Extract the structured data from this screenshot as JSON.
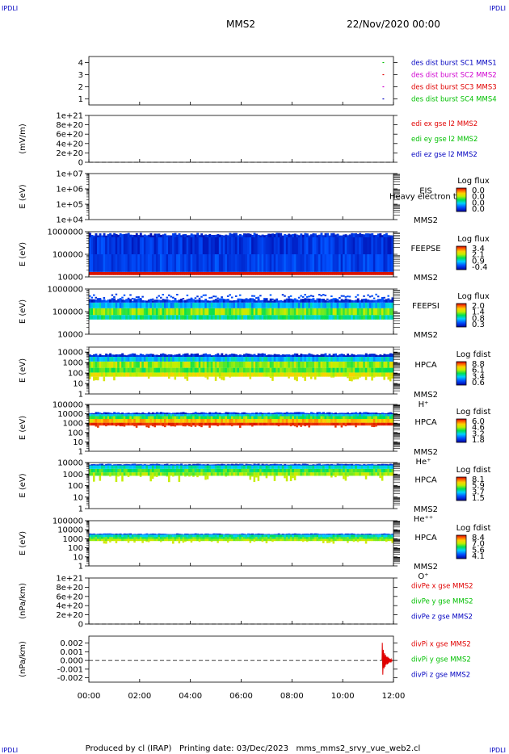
{
  "corners": {
    "top_left": "IPDLI",
    "top_right": "IPDLI",
    "bottom_left": "IPDLI",
    "bottom_right": "IPDLI"
  },
  "header": {
    "spacecraft": "MMS2",
    "date": "22/Nov/2020 00:00"
  },
  "footer": {
    "text": "Produced by cl (IRAP)   Printing date: 03/Dec/2023   mms_mms2_srvy_vue_web2.cl"
  },
  "colors": {
    "red": "#e00000",
    "magenta": "#d000d0",
    "green": "#00c000",
    "blue": "#0000c0",
    "black": "#000000"
  },
  "chart_data": {
    "type": "multi-panel stack plot",
    "x_ticks": [
      "00:00",
      "02:00",
      "04:00",
      "06:00",
      "08:00",
      "10:00",
      "12:00"
    ],
    "xlim_hours": [
      0,
      12
    ],
    "panels": [
      {
        "id": "burst",
        "type": "timeline",
        "ylabel": "",
        "ylim": [
          0.5,
          4.5
        ],
        "y_ticks": [
          "4",
          "3",
          "2",
          "1"
        ],
        "legend": [
          "des dist burst SC1 MMS1",
          "des dist burst SC2 MMS2",
          "des dist burst SC3 MMS3",
          "des dist burst SC4 MMS4"
        ],
        "legend_colors": [
          "#0000c0",
          "#d000d0",
          "#e00000",
          "#00c000"
        ],
        "marks": [
          {
            "t": 11.6,
            "level": 4,
            "color": "#00c000"
          },
          {
            "t": 11.6,
            "level": 3,
            "color": "#e00000"
          },
          {
            "t": 11.6,
            "level": 2,
            "color": "#d000d0"
          },
          {
            "t": 11.6,
            "level": 1,
            "color": "#0000c0"
          }
        ]
      },
      {
        "id": "edi",
        "type": "line",
        "ylabel": "(mV/m)",
        "ylim": [
          0,
          1e+21
        ],
        "y_ticks": [
          "1e+21",
          "8e+20",
          "6e+20",
          "4e+20",
          "2e+20",
          "0"
        ],
        "legend": [
          "edi ex gse l2 MMS2",
          "edi ey gse l2 MMS2",
          "edi ez gse l2 MMS2"
        ],
        "legend_colors": [
          "#e00000",
          "#00c000",
          "#0000c0"
        ],
        "zero_line": true
      },
      {
        "id": "eis",
        "type": "heatmap",
        "ylabel": "E (eV)",
        "scale": "log",
        "ylim": [
          10000.0,
          10000000.0
        ],
        "y_ticks": [
          "1e+07",
          "1e+06",
          "1e+05",
          "1e+04"
        ],
        "labels": [
          "EIS",
          "MMS2"
        ],
        "overlay_text": "Heavy electron to",
        "colorbar": {
          "title": "Log flux",
          "ticks": [
            "0.0",
            "0.0",
            "0.0",
            "0.0"
          ]
        }
      },
      {
        "id": "feepse",
        "type": "heatmap",
        "ylabel": "E (eV)",
        "scale": "log",
        "ylim": [
          10000.0,
          1000000.0
        ],
        "y_ticks": [
          "1000000",
          "100000",
          "10000"
        ],
        "labels": [
          "FEEPSE",
          "MMS2"
        ],
        "colorbar": {
          "title": "Log flux",
          "ticks": [
            "3.4",
            "2.1",
            "0.9",
            "-0.4"
          ]
        }
      },
      {
        "id": "feepsi",
        "type": "heatmap",
        "ylabel": "E (eV)",
        "scale": "log",
        "ylim": [
          10000.0,
          1000000.0
        ],
        "y_ticks": [
          "1000000",
          "100000",
          "10000"
        ],
        "labels": [
          "FEEPSI",
          "MMS2"
        ],
        "colorbar": {
          "title": "Log flux",
          "ticks": [
            "2.0",
            "1.4",
            "0.8",
            "0.3"
          ]
        }
      },
      {
        "id": "hpca_h",
        "type": "heatmap",
        "ylabel": "E (eV)",
        "scale": "log",
        "ylim": [
          1,
          30000.0
        ],
        "y_ticks": [
          "10000",
          "1000",
          "100",
          "10",
          "1"
        ],
        "labels": [
          "HPCA",
          "MMS2",
          "H⁺"
        ],
        "colorbar": {
          "title": "Log fdist",
          "ticks": [
            "8.8",
            "6.1",
            "3.4",
            "0.6"
          ]
        }
      },
      {
        "id": "hpca_he",
        "type": "heatmap",
        "ylabel": "E (eV)",
        "scale": "log",
        "ylim": [
          1,
          100000.0
        ],
        "y_ticks": [
          "100000",
          "10000",
          "1000",
          "100",
          "10",
          "1"
        ],
        "labels": [
          "HPCA",
          "MMS2",
          "He⁺"
        ],
        "colorbar": {
          "title": "Log fdist",
          "ticks": [
            "6.0",
            "4.6",
            "3.2",
            "1.8"
          ]
        }
      },
      {
        "id": "hpca_hepp",
        "type": "heatmap",
        "ylabel": "E (eV)",
        "scale": "log",
        "ylim": [
          1,
          10000.0
        ],
        "y_ticks": [
          "10000",
          "1000",
          "100",
          "10",
          "1"
        ],
        "labels": [
          "HPCA",
          "MMS2",
          "He⁺⁺"
        ],
        "colorbar": {
          "title": "Log fdist",
          "ticks": [
            "8.1",
            "5.9",
            "3.7",
            "1.5"
          ]
        }
      },
      {
        "id": "hpca_o",
        "type": "heatmap",
        "ylabel": "E (eV)",
        "scale": "log",
        "ylim": [
          1,
          100000.0
        ],
        "y_ticks": [
          "100000",
          "10000",
          "1000",
          "100",
          "10",
          "1"
        ],
        "labels": [
          "HPCA",
          "MMS2",
          "O⁺"
        ],
        "colorbar": {
          "title": "Log fdist",
          "ticks": [
            "8.4",
            "7.0",
            "5.6",
            "4.1"
          ]
        }
      },
      {
        "id": "divpe",
        "type": "line",
        "ylabel": "(nPa/km)",
        "ylim": [
          0,
          1e+21
        ],
        "y_ticks": [
          "1e+21",
          "8e+20",
          "6e+20",
          "4e+20",
          "2e+20",
          "0"
        ],
        "legend": [
          "divPe x gse MMS2",
          "divPe y gse MMS2",
          "divPe z gse MMS2"
        ],
        "legend_colors": [
          "#e00000",
          "#00c000",
          "#0000c0"
        ],
        "zero_line": true
      },
      {
        "id": "divpi",
        "type": "line",
        "ylabel": "(nPa/km)",
        "ylim": [
          -0.0025,
          0.0028
        ],
        "y_ticks": [
          "0.002",
          "0.001",
          "0.000",
          "-0.001",
          "-0.002"
        ],
        "legend": [
          "divPi x gse MMS2",
          "divPi y gse MMS2",
          "divPi z gse MMS2"
        ],
        "legend_colors": [
          "#e00000",
          "#00c000",
          "#0000c0"
        ],
        "zero_line": true,
        "burst": {
          "t_start": 11.55,
          "t_end": 11.95,
          "x_peak": 0.0022,
          "y_peak": 0.0012,
          "z_peak": 0.0006
        }
      }
    ]
  }
}
